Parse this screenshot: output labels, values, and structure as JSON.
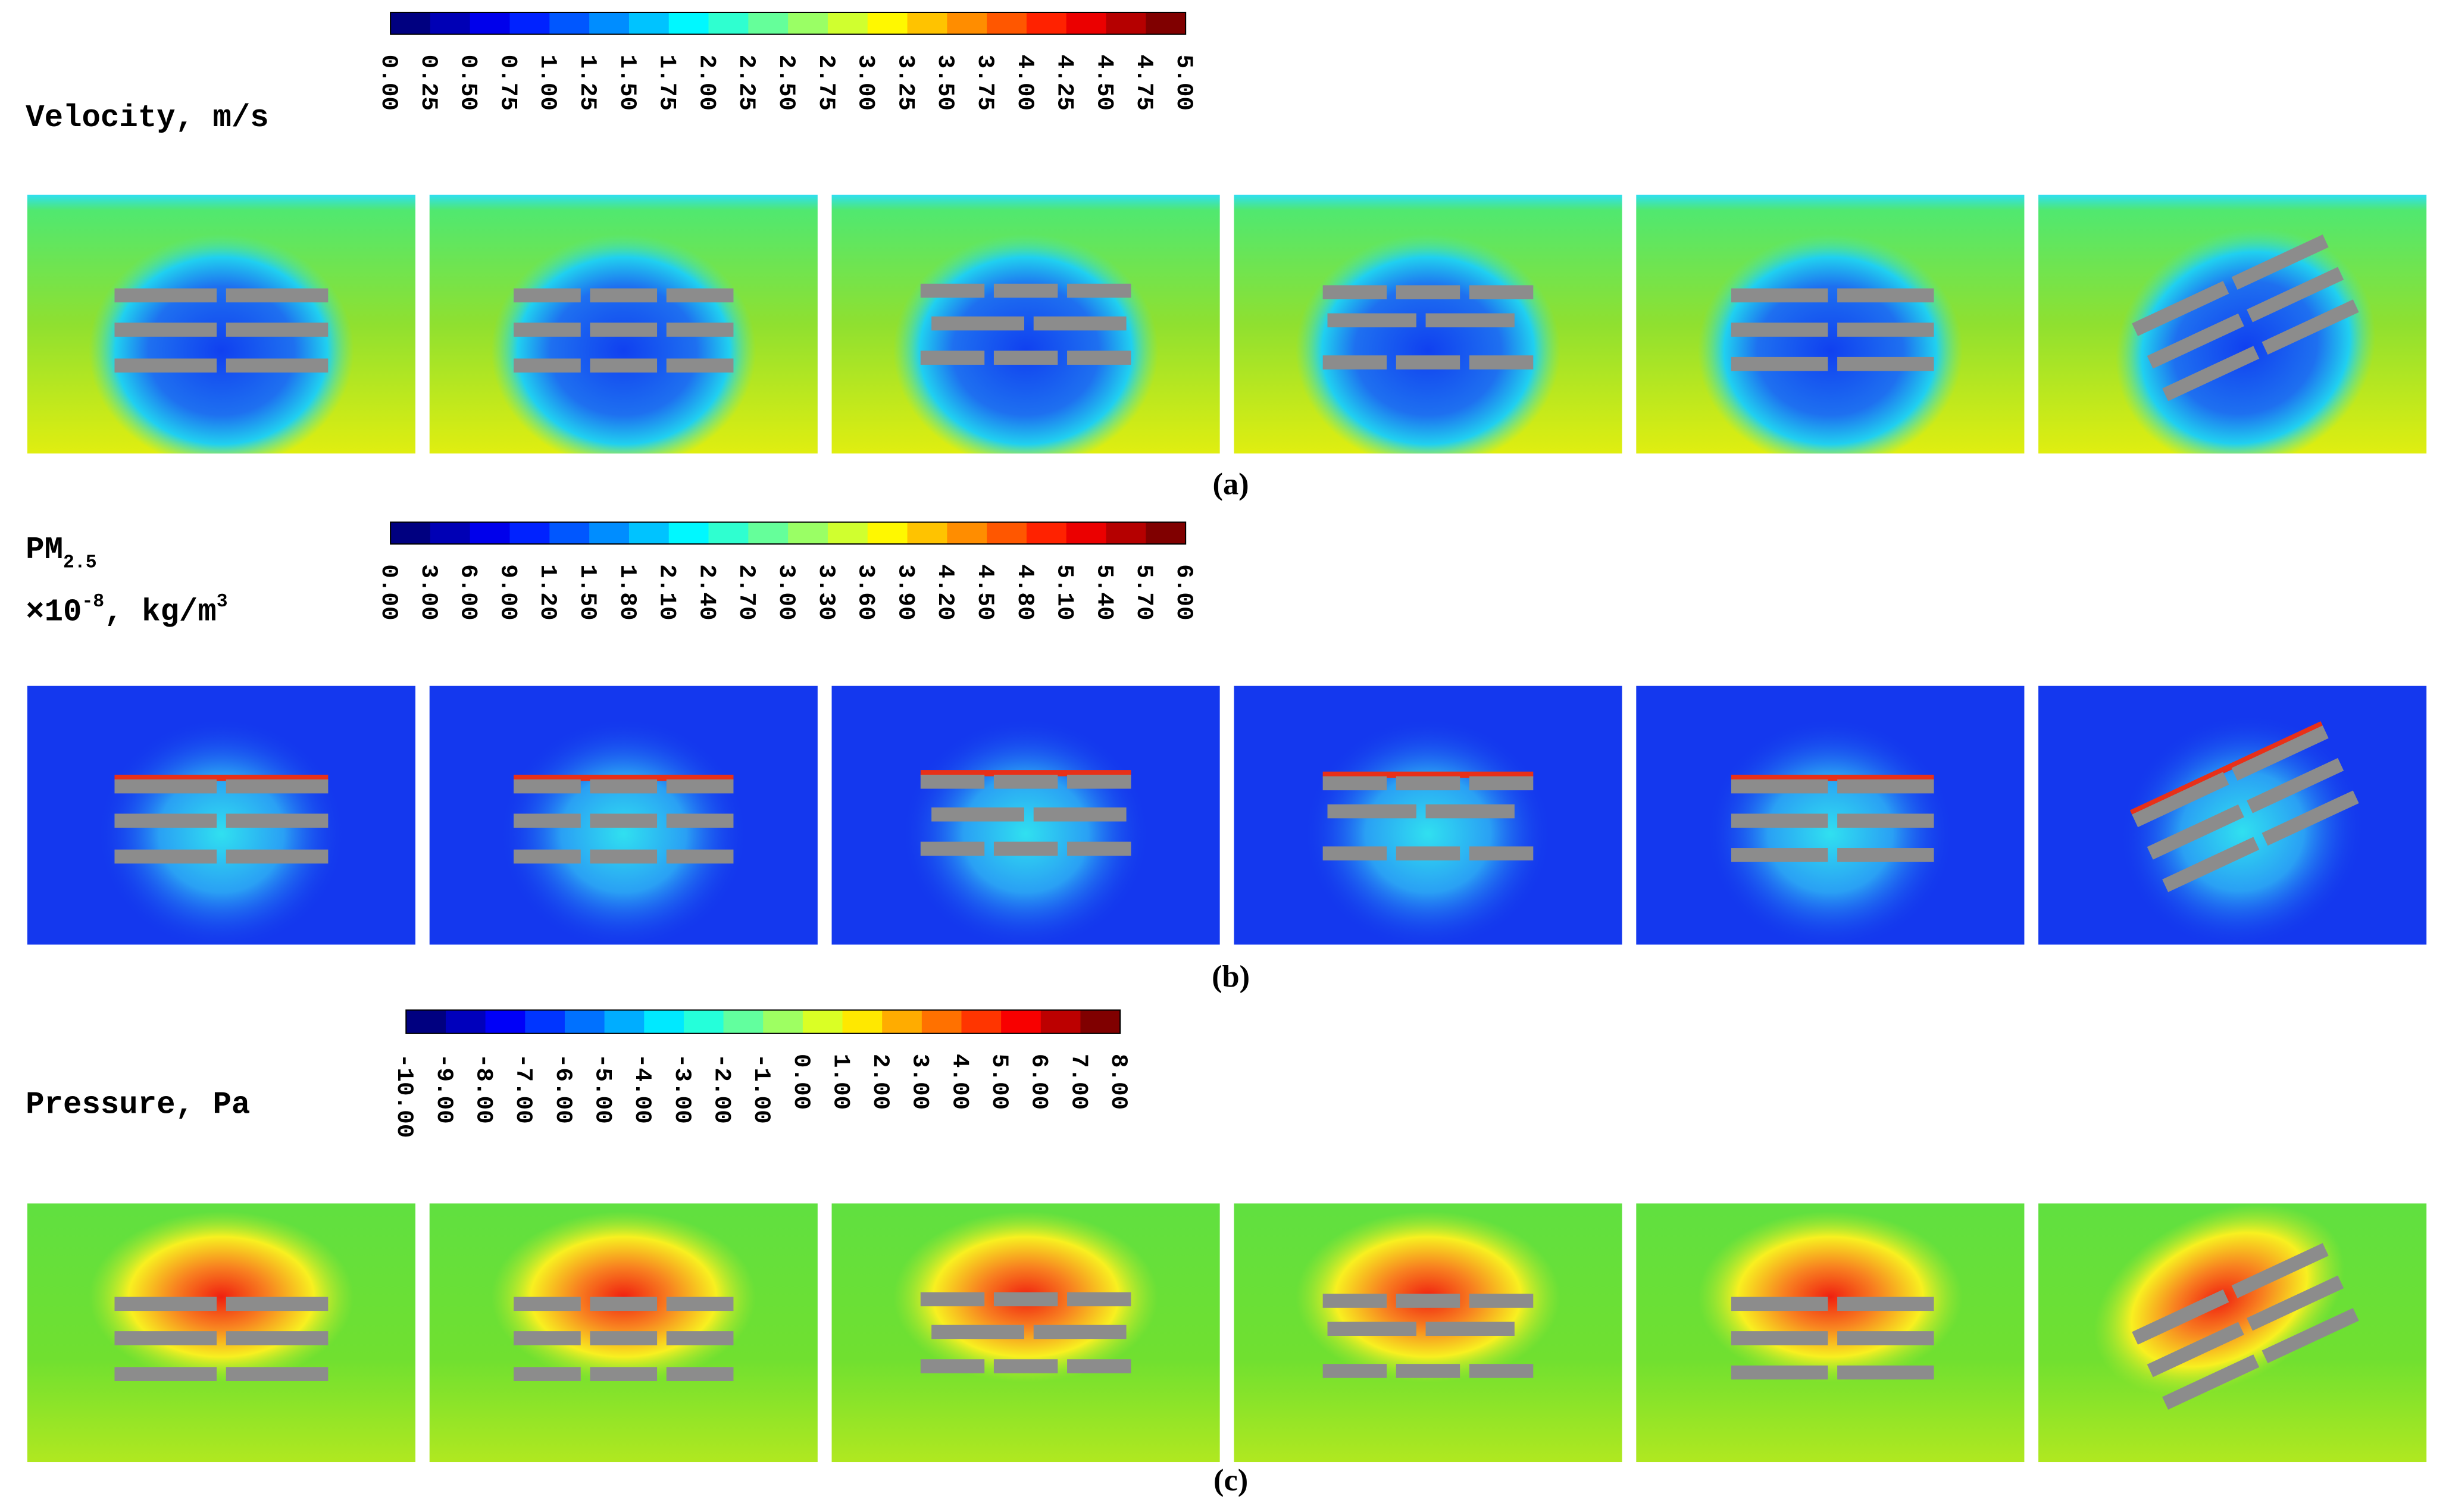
{
  "rows": [
    {
      "label": [
        "Velocity, m/s"
      ],
      "ticks": [
        "0.00",
        "0.25",
        "0.50",
        "0.75",
        "1.00",
        "1.25",
        "1.50",
        "1.75",
        "2.00",
        "2.25",
        "2.50",
        "2.75",
        "3.00",
        "3.25",
        "3.50",
        "3.75",
        "4.00",
        "4.25",
        "4.50",
        "4.75",
        "5.00"
      ],
      "caption": "(a)"
    },
    {
      "label": [
        "PM",
        "2.5",
        "×10",
        "-8",
        ", kg/m",
        "3"
      ],
      "ticks": [
        "0.00",
        "3.00",
        "6.00",
        "9.00",
        "1.20",
        "1.50",
        "1.80",
        "2.10",
        "2.40",
        "2.70",
        "3.00",
        "3.30",
        "3.60",
        "3.90",
        "4.20",
        "4.50",
        "4.80",
        "5.10",
        "5.40",
        "5.70",
        "6.00"
      ],
      "caption": "(b)"
    },
    {
      "label": [
        "Pressure, Pa"
      ],
      "ticks": [
        "-10.00",
        "-9.00",
        "-8.00",
        "-7.00",
        "-6.00",
        "-5.00",
        "-4.00",
        "-3.00",
        "-2.00",
        "-1.00",
        "0.00",
        "1.00",
        "2.00",
        "3.00",
        "4.00",
        "5.00",
        "6.00",
        "7.00",
        "8.00"
      ],
      "caption": "(c)"
    }
  ]
}
